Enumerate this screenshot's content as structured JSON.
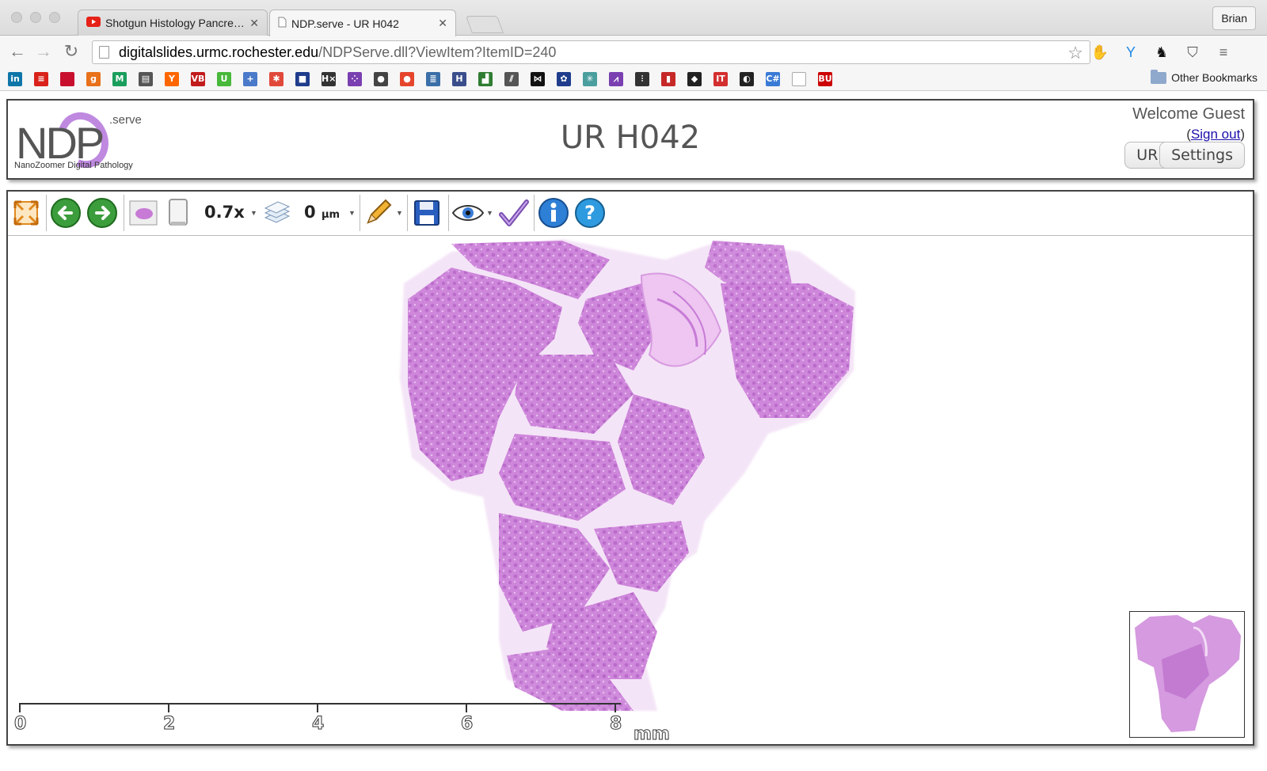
{
  "browser": {
    "tabs": [
      {
        "title": "Shotgun Histology Pancre…",
        "icon": "youtube-icon",
        "active": false
      },
      {
        "title": "NDP.serve - UR H042",
        "icon": "page-icon",
        "active": true
      }
    ],
    "user": "Brian",
    "url_domain": "digitalslides.urmc.rochester.edu",
    "url_path": "/NDPServe.dll?ViewItem?ItemID=240",
    "other_bookmarks": "Other Bookmarks",
    "bookmark_icons": [
      {
        "name": "linkedin",
        "label": "in",
        "color": "#0e76a8"
      },
      {
        "name": "bookmark-red",
        "label": "≡",
        "color": "#d9221a"
      },
      {
        "name": "bank",
        "label": "",
        "color": "#c8102e"
      },
      {
        "name": "goodreads",
        "label": "g",
        "color": "#e8711a"
      },
      {
        "name": "mendeley",
        "label": "M",
        "color": "#1a9e5c"
      },
      {
        "name": "news",
        "label": "▤",
        "color": "#555555"
      },
      {
        "name": "ycombinator",
        "label": "Y",
        "color": "#ff6600"
      },
      {
        "name": "vb",
        "label": "VB",
        "color": "#c21b1b"
      },
      {
        "name": "utorrent",
        "label": "U",
        "color": "#48b83b"
      },
      {
        "name": "plus",
        "label": "+",
        "color": "#4a7ac9"
      },
      {
        "name": "pinwheel",
        "label": "✱",
        "color": "#e0493a"
      },
      {
        "name": "grid",
        "label": "■",
        "color": "#1f3d8c"
      },
      {
        "name": "hx",
        "label": "H×",
        "color": "#333333"
      },
      {
        "name": "dots",
        "label": "⁘",
        "color": "#7a3fb0"
      },
      {
        "name": "apc",
        "label": "●",
        "color": "#444444"
      },
      {
        "name": "tomato",
        "label": "●",
        "color": "#e5452c"
      },
      {
        "name": "database",
        "label": "≣",
        "color": "#3b6fa8"
      },
      {
        "name": "h-square",
        "label": "H",
        "color": "#3a4e8c"
      },
      {
        "name": "chart-green",
        "label": "▟",
        "color": "#2f7d32"
      },
      {
        "name": "feather",
        "label": "⫽",
        "color": "#555555"
      },
      {
        "name": "bowtie",
        "label": "⋈",
        "color": "#111111"
      },
      {
        "name": "fleur",
        "label": "✿",
        "color": "#1f3d8c"
      },
      {
        "name": "network",
        "label": "✳",
        "color": "#4a9e9e"
      },
      {
        "name": "feather-purple",
        "label": "⩘",
        "color": "#7a3fb0"
      },
      {
        "name": "stripes",
        "label": "⫶",
        "color": "#333333"
      },
      {
        "name": "bars-red",
        "label": "▮",
        "color": "#c62828"
      },
      {
        "name": "silhouette",
        "label": "◆",
        "color": "#222222"
      },
      {
        "name": "it",
        "label": "IT",
        "color": "#d32f2f"
      },
      {
        "name": "yin",
        "label": "◐",
        "color": "#222222"
      },
      {
        "name": "csharp",
        "label": "C#",
        "color": "#3a7bd5"
      },
      {
        "name": "blank-page",
        "label": "",
        "color": "#dddddd"
      },
      {
        "name": "bu",
        "label": "BU",
        "color": "#cc0000"
      }
    ]
  },
  "page": {
    "logo_serve": ".serve",
    "logo_letters": "NDP",
    "logo_tagline": "NanoZoomer Digital Pathology",
    "title": "UR H042",
    "welcome": "Welcome Guest",
    "sign_out_open": "(",
    "sign_out": "Sign out",
    "sign_out_close": ")",
    "url_button": "URL",
    "settings_button": "Settings"
  },
  "viewer": {
    "zoom": "0.7x",
    "focus_value": "0",
    "focus_unit": "µm",
    "scale_labels": [
      "0",
      "2",
      "4",
      "6",
      "8"
    ],
    "scale_unit": "mm"
  },
  "colors": {
    "tissue": "#c77bd6",
    "tissue_light": "#e3b7e9",
    "logo_purple": "#b575db"
  }
}
